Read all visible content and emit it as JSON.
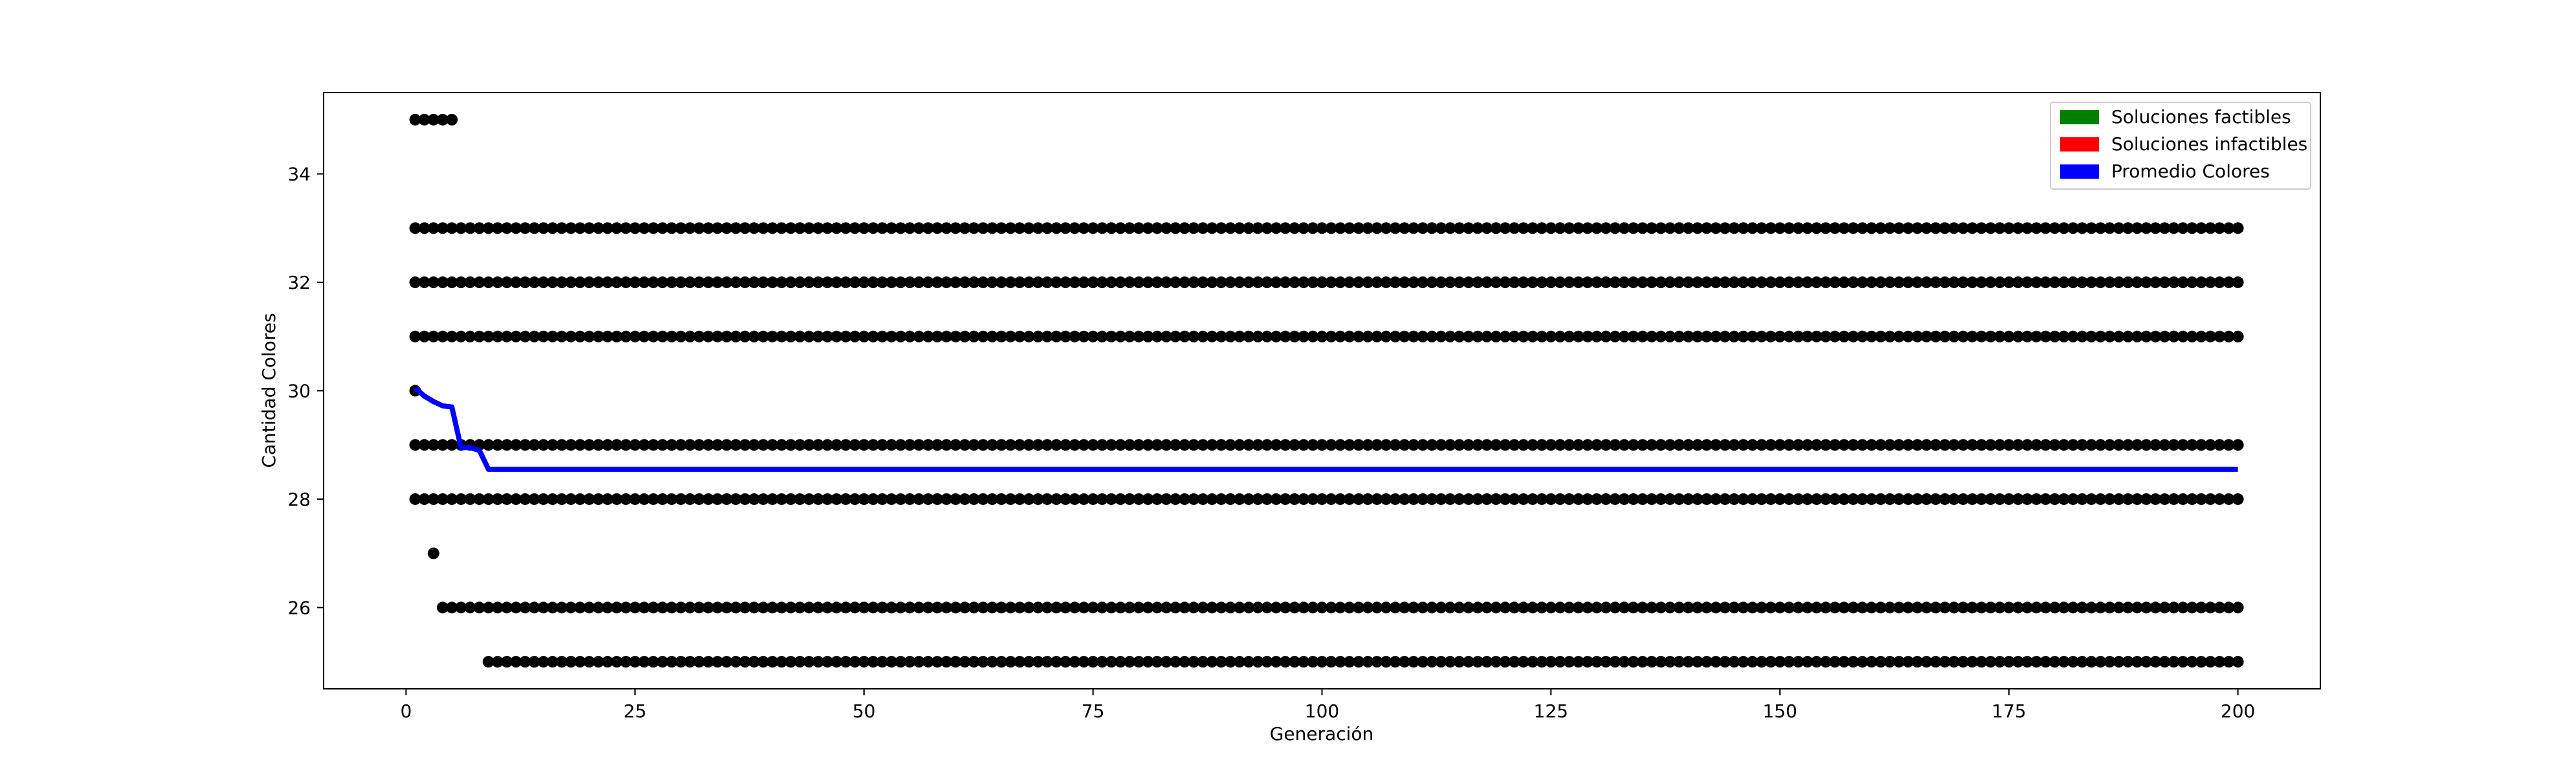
{
  "chart_data": {
    "type": "scatter",
    "title": "",
    "xlabel": "Generación",
    "ylabel": "Cantidad Colores",
    "xlim": [
      -9,
      209
    ],
    "ylim": [
      24.5,
      35.5
    ],
    "x_ticks": [
      0,
      25,
      50,
      75,
      100,
      125,
      150,
      175,
      200
    ],
    "y_ticks": [
      26,
      28,
      30,
      32,
      34
    ],
    "grid": false,
    "legend_position": "top-right",
    "legend": [
      {
        "label": "Soluciones factibles",
        "color": "#008000"
      },
      {
        "label": "Soluciones infactibles",
        "color": "#ff0000"
      },
      {
        "label": "Promedio Colores",
        "color": "#0000ff"
      }
    ],
    "scatter_color": "#000000",
    "scatter_rows": [
      {
        "y": 35,
        "x_start": 1,
        "x_end": 5
      },
      {
        "y": 33,
        "x_start": 1,
        "x_end": 200
      },
      {
        "y": 32,
        "x_start": 1,
        "x_end": 200
      },
      {
        "y": 31,
        "x_start": 1,
        "x_end": 200
      },
      {
        "y": 30,
        "x_start": 1,
        "x_end": 1
      },
      {
        "y": 29,
        "x_start": 1,
        "x_end": 200
      },
      {
        "y": 28,
        "x_start": 1,
        "x_end": 200
      },
      {
        "y": 27,
        "x_start": 3,
        "x_end": 3
      },
      {
        "y": 26,
        "x_start": 4,
        "x_end": 200
      },
      {
        "y": 25,
        "x_start": 9,
        "x_end": 200
      }
    ],
    "series": [
      {
        "name": "Promedio Colores",
        "color": "#0000ff",
        "x": [
          1,
          2,
          3,
          4,
          5,
          6,
          7,
          8,
          9,
          200
        ],
        "y": [
          30.05,
          29.9,
          29.8,
          29.72,
          29.7,
          28.95,
          28.95,
          28.9,
          28.55,
          28.55
        ]
      }
    ]
  }
}
